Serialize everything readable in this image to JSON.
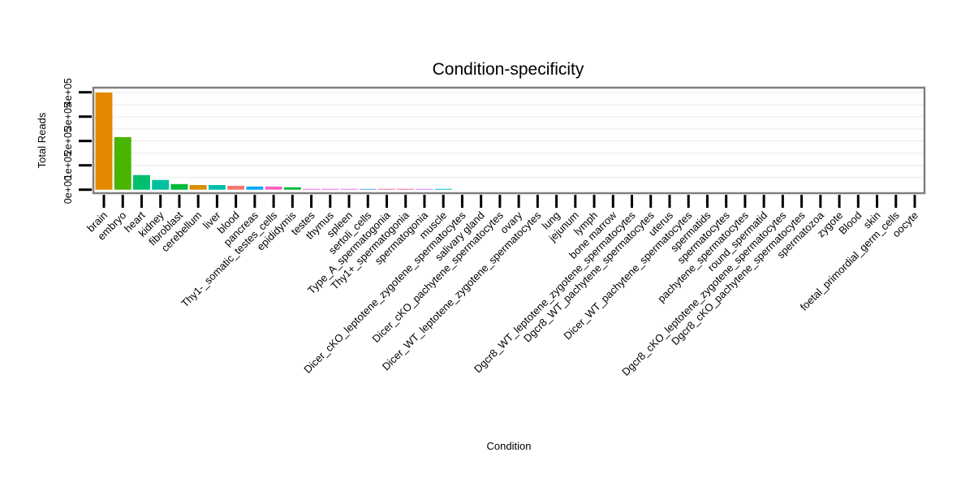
{
  "chart_data": {
    "type": "bar",
    "title": "Condition-specificity",
    "xlabel": "Condition",
    "ylabel": "Total Reads",
    "ylim": [
      0,
      420000
    ],
    "yticks": [
      0,
      100000,
      200000,
      300000,
      400000
    ],
    "ytick_labels": [
      "0e+00",
      "1e+05",
      "2e+05",
      "3e+05",
      "4e+05"
    ],
    "grid": true,
    "legend": "none",
    "categories": [
      "brain",
      "embryo",
      "heart",
      "kidney",
      "fibroblast",
      "cerebellum",
      "liver",
      "blood",
      "pancreas",
      "Thy1-_somatic_testes_cells",
      "epididymis",
      "testes",
      "thymus",
      "spleen",
      "sertoli_cells",
      "Type_A_spermatogonia",
      "Thy1+_spermatogonia",
      "spermatogonia",
      "muscle",
      "Dicer_cKO_leptotene_zygotene_spermatocytes",
      "salivary gland",
      "Dicer_cKO_pachytene_spermatocytes",
      "ovary",
      "Dicer_WT_leptotene_zygotene_spermatocytes",
      "lung",
      "jejunum",
      "lymph",
      "bone marrow",
      "Dgcr8_WT_leptotene_zygotene_spermatocytes",
      "Dgcr8_WT_pachytene_spermatocytes",
      "uterus",
      "Dicer_WT_pachytene_spermatocytes",
      "spermatids",
      "spermatocytes",
      "pachytene_spermatocytes",
      "round_spermatid",
      "Dgcr8_cKO_leptotene_zygotene_spermatocytes",
      "Dgcr8_cKO_pachytene_spermatocytes",
      "spermatozoa",
      "zygote",
      "Blood",
      "skin",
      "foetal_primordial_germ_cells",
      "oocyte"
    ],
    "values": [
      399000,
      216000,
      60000,
      40000,
      23000,
      19000,
      19000,
      16000,
      13000,
      13000,
      10000,
      2500,
      2400,
      2300,
      2200,
      2100,
      2000,
      1900,
      1800,
      0,
      0,
      0,
      0,
      0,
      0,
      0,
      0,
      0,
      0,
      0,
      0,
      0,
      0,
      0,
      0,
      0,
      0,
      0,
      0,
      0,
      0,
      0,
      0,
      0
    ],
    "colors": [
      "#E58700",
      "#4AB500",
      "#00BF6F",
      "#00C0A0",
      "#00BA38",
      "#DB8E00",
      "#00BFAE",
      "#F8766D",
      "#00A9FF",
      "#FF61C3",
      "#00BA38",
      "#F564E3",
      "#F564E3",
      "#E76BF3",
      "#619CFF",
      "#FF6C91",
      "#FF6C91",
      "#C77CFF",
      "#00BFC4",
      "#999999",
      "#999999",
      "#999999",
      "#999999",
      "#999999",
      "#999999",
      "#999999",
      "#999999",
      "#999999",
      "#999999",
      "#999999",
      "#999999",
      "#999999",
      "#999999",
      "#999999",
      "#999999",
      "#999999",
      "#999999",
      "#999999",
      "#999999",
      "#999999",
      "#999999",
      "#999999",
      "#999999",
      "#999999"
    ]
  }
}
